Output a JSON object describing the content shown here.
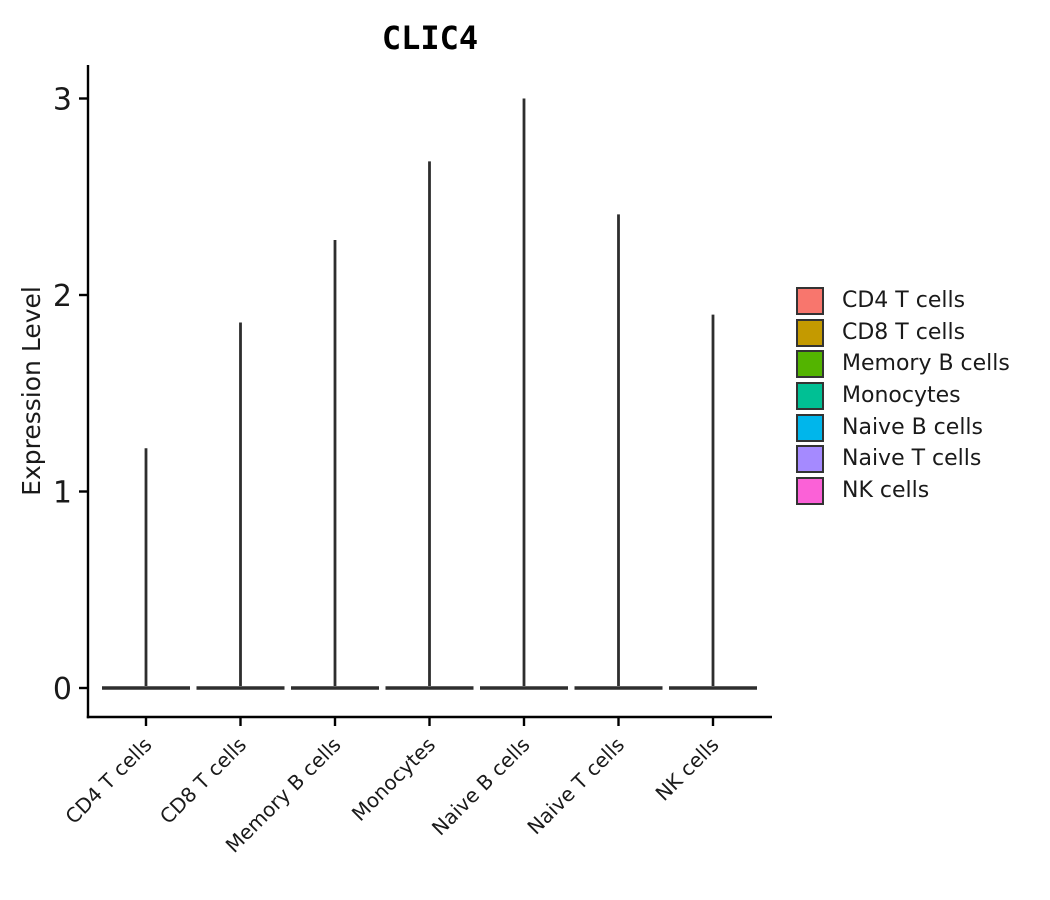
{
  "chart_data": {
    "type": "violin",
    "title": "CLIC4",
    "xlabel": "",
    "ylabel": "Expression Level",
    "categories": [
      "CD4 T cells",
      "CD8 T cells",
      "Memory B cells",
      "Monocytes",
      "Naive B cells",
      "Naive T cells",
      "NK cells"
    ],
    "series": [
      {
        "name": "CD4 T cells",
        "color": "#F8766D",
        "baseline": 0,
        "peak_expression": 1.22
      },
      {
        "name": "CD8 T cells",
        "color": "#C49A00",
        "baseline": 0,
        "peak_expression": 1.86
      },
      {
        "name": "Memory B cells",
        "color": "#53B400",
        "baseline": 0,
        "peak_expression": 2.28
      },
      {
        "name": "Monocytes",
        "color": "#00C094",
        "baseline": 0,
        "peak_expression": 2.68
      },
      {
        "name": "Naive B cells",
        "color": "#00B6EB",
        "baseline": 0,
        "peak_expression": 3.0
      },
      {
        "name": "Naive T cells",
        "color": "#A58AFF",
        "baseline": 0,
        "peak_expression": 2.41
      },
      {
        "name": "NK cells",
        "color": "#FB61D7",
        "baseline": 0,
        "peak_expression": 1.9
      }
    ],
    "yticks": [
      0,
      1,
      2,
      3
    ],
    "ylim": [
      -0.15,
      3.17
    ],
    "grid": false,
    "legend_position": "right",
    "colors": {
      "background": "#FFFFFF",
      "axis": "#000000",
      "text": "#1A1A1A",
      "violin_outline": "#2E2E2E"
    }
  }
}
